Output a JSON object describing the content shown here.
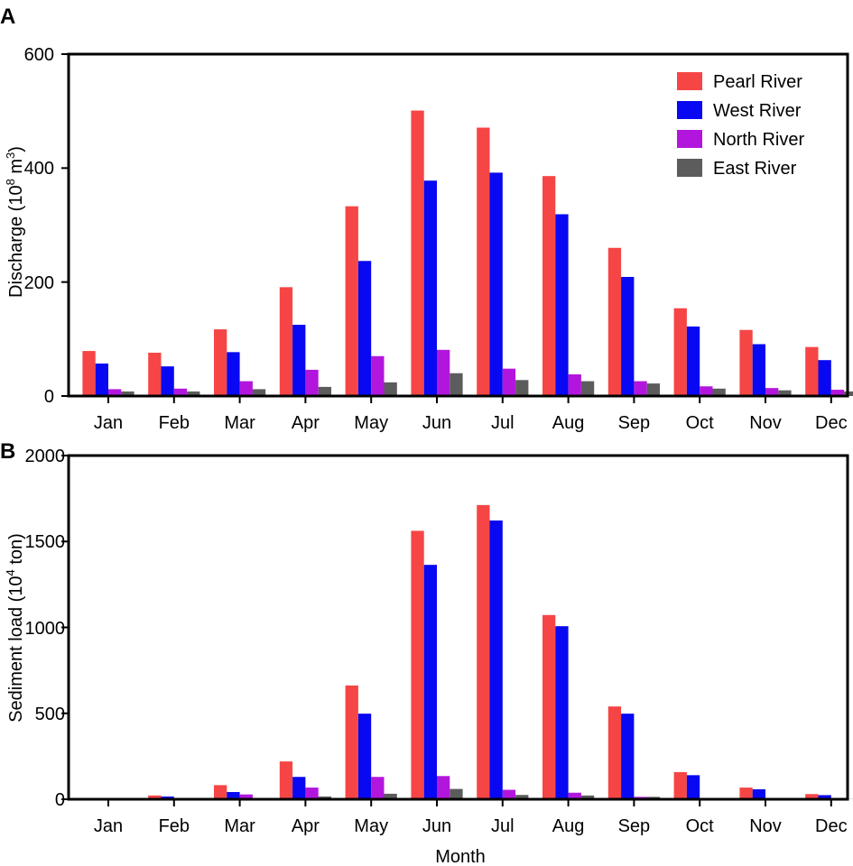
{
  "chart_data": [
    {
      "panel": "A",
      "type": "bar",
      "title": "",
      "ylabel_main": "Discharge (10",
      "ylabel_sup1": "8",
      "ylabel_mid": " m",
      "ylabel_sup2": "3",
      "ylabel_end": ")",
      "xlabel": "",
      "ylim": [
        0,
        600
      ],
      "yticks": [
        "0",
        "200",
        "400",
        "600"
      ],
      "categories": [
        "Jan",
        "Feb",
        "Mar",
        "Apr",
        "May",
        "Jun",
        "Jul",
        "Aug",
        "Sep",
        "Oct",
        "Nov",
        "Dec"
      ],
      "legend_position": "top-right",
      "series": [
        {
          "name": "Pearl River",
          "color": "#f64545",
          "values": [
            79,
            76,
            117,
            191,
            333,
            501,
            471,
            386,
            260,
            154,
            116,
            86
          ]
        },
        {
          "name": "West River",
          "color": "#0808f2",
          "values": [
            57,
            52,
            77,
            125,
            237,
            378,
            392,
            319,
            209,
            122,
            91,
            63
          ]
        },
        {
          "name": "North River",
          "color": "#b216dd",
          "values": [
            12,
            13,
            26,
            46,
            70,
            81,
            48,
            38,
            26,
            17,
            14,
            11
          ]
        },
        {
          "name": "East River",
          "color": "#5c5c5c",
          "values": [
            8,
            8,
            12,
            16,
            24,
            40,
            28,
            26,
            22,
            13,
            10,
            8
          ]
        }
      ]
    },
    {
      "panel": "B",
      "type": "bar",
      "title": "",
      "ylabel_main": "Sediment load (10",
      "ylabel_sup1": "4",
      "ylabel_mid": " ton)",
      "ylabel_sup2": "",
      "ylabel_end": "",
      "xlabel": "Month",
      "ylim": [
        0,
        2000
      ],
      "yticks": [
        "0",
        "500",
        "1000",
        "1500",
        "2000"
      ],
      "categories": [
        "Jan",
        "Feb",
        "Mar",
        "Apr",
        "May",
        "Jun",
        "Jul",
        "Aug",
        "Sep",
        "Oct",
        "Nov",
        "Dec"
      ],
      "series": [
        {
          "name": "Pearl River",
          "color": "#f64545",
          "values": [
            4,
            22,
            82,
            220,
            662,
            1562,
            1712,
            1072,
            540,
            158,
            68,
            30
          ]
        },
        {
          "name": "West River",
          "color": "#0808f2",
          "values": [
            3,
            16,
            42,
            130,
            498,
            1364,
            1622,
            1007,
            498,
            140,
            58,
            24
          ]
        },
        {
          "name": "North River",
          "color": "#b216dd",
          "values": [
            1,
            4,
            28,
            68,
            130,
            135,
            55,
            38,
            14,
            4,
            3,
            2
          ]
        },
        {
          "name": "East River",
          "color": "#5c5c5c",
          "values": [
            1,
            2,
            6,
            16,
            32,
            60,
            25,
            22,
            14,
            3,
            2,
            1
          ]
        }
      ]
    }
  ]
}
